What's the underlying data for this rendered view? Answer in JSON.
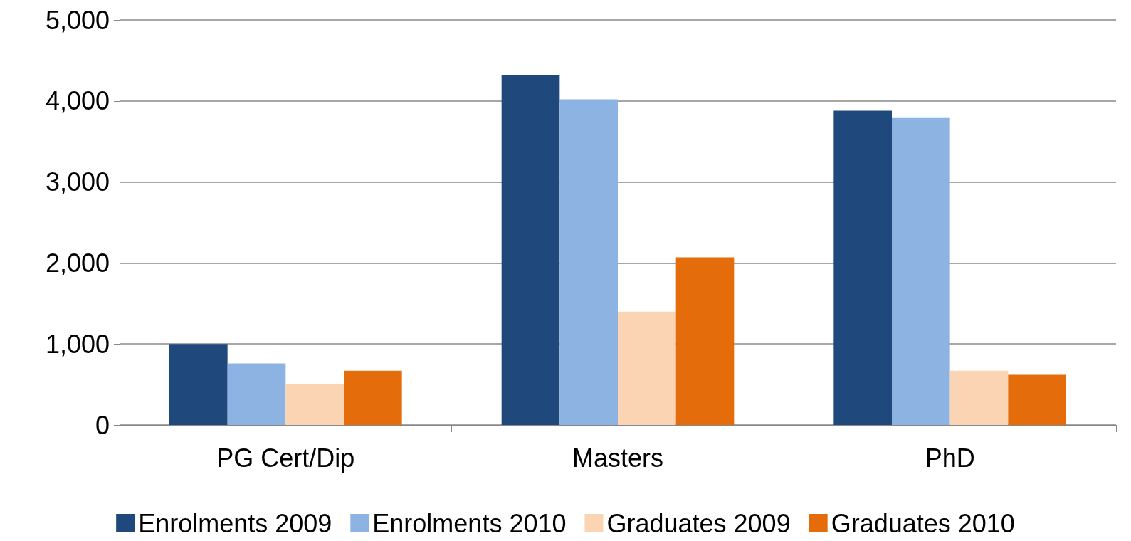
{
  "chart_data": {
    "type": "bar",
    "categories": [
      "PG Cert/Dip",
      "Masters",
      "PhD"
    ],
    "series": [
      {
        "name": "Enrolments 2009",
        "color": "#1f497d",
        "values": [
          1000,
          4320,
          3880
        ]
      },
      {
        "name": "Enrolments 2010",
        "color": "#8db3e2",
        "values": [
          760,
          4020,
          3790
        ]
      },
      {
        "name": "Graduates 2009",
        "color": "#fbd4b4",
        "values": [
          500,
          1400,
          670
        ]
      },
      {
        "name": "Graduates 2010",
        "color": "#e46c0a",
        "values": [
          670,
          2070,
          620
        ]
      }
    ],
    "ylim": [
      0,
      5000
    ],
    "yticks": [
      0,
      {
        "value": 1000,
        "label": "1,000"
      },
      {
        "value": 2000,
        "label": "2,000"
      },
      {
        "value": 3000,
        "label": "3,000"
      },
      {
        "value": 4000,
        "label": "4,000"
      },
      {
        "value": 5000,
        "label": "5,000"
      }
    ],
    "grid": "y",
    "legend": "bottom"
  }
}
